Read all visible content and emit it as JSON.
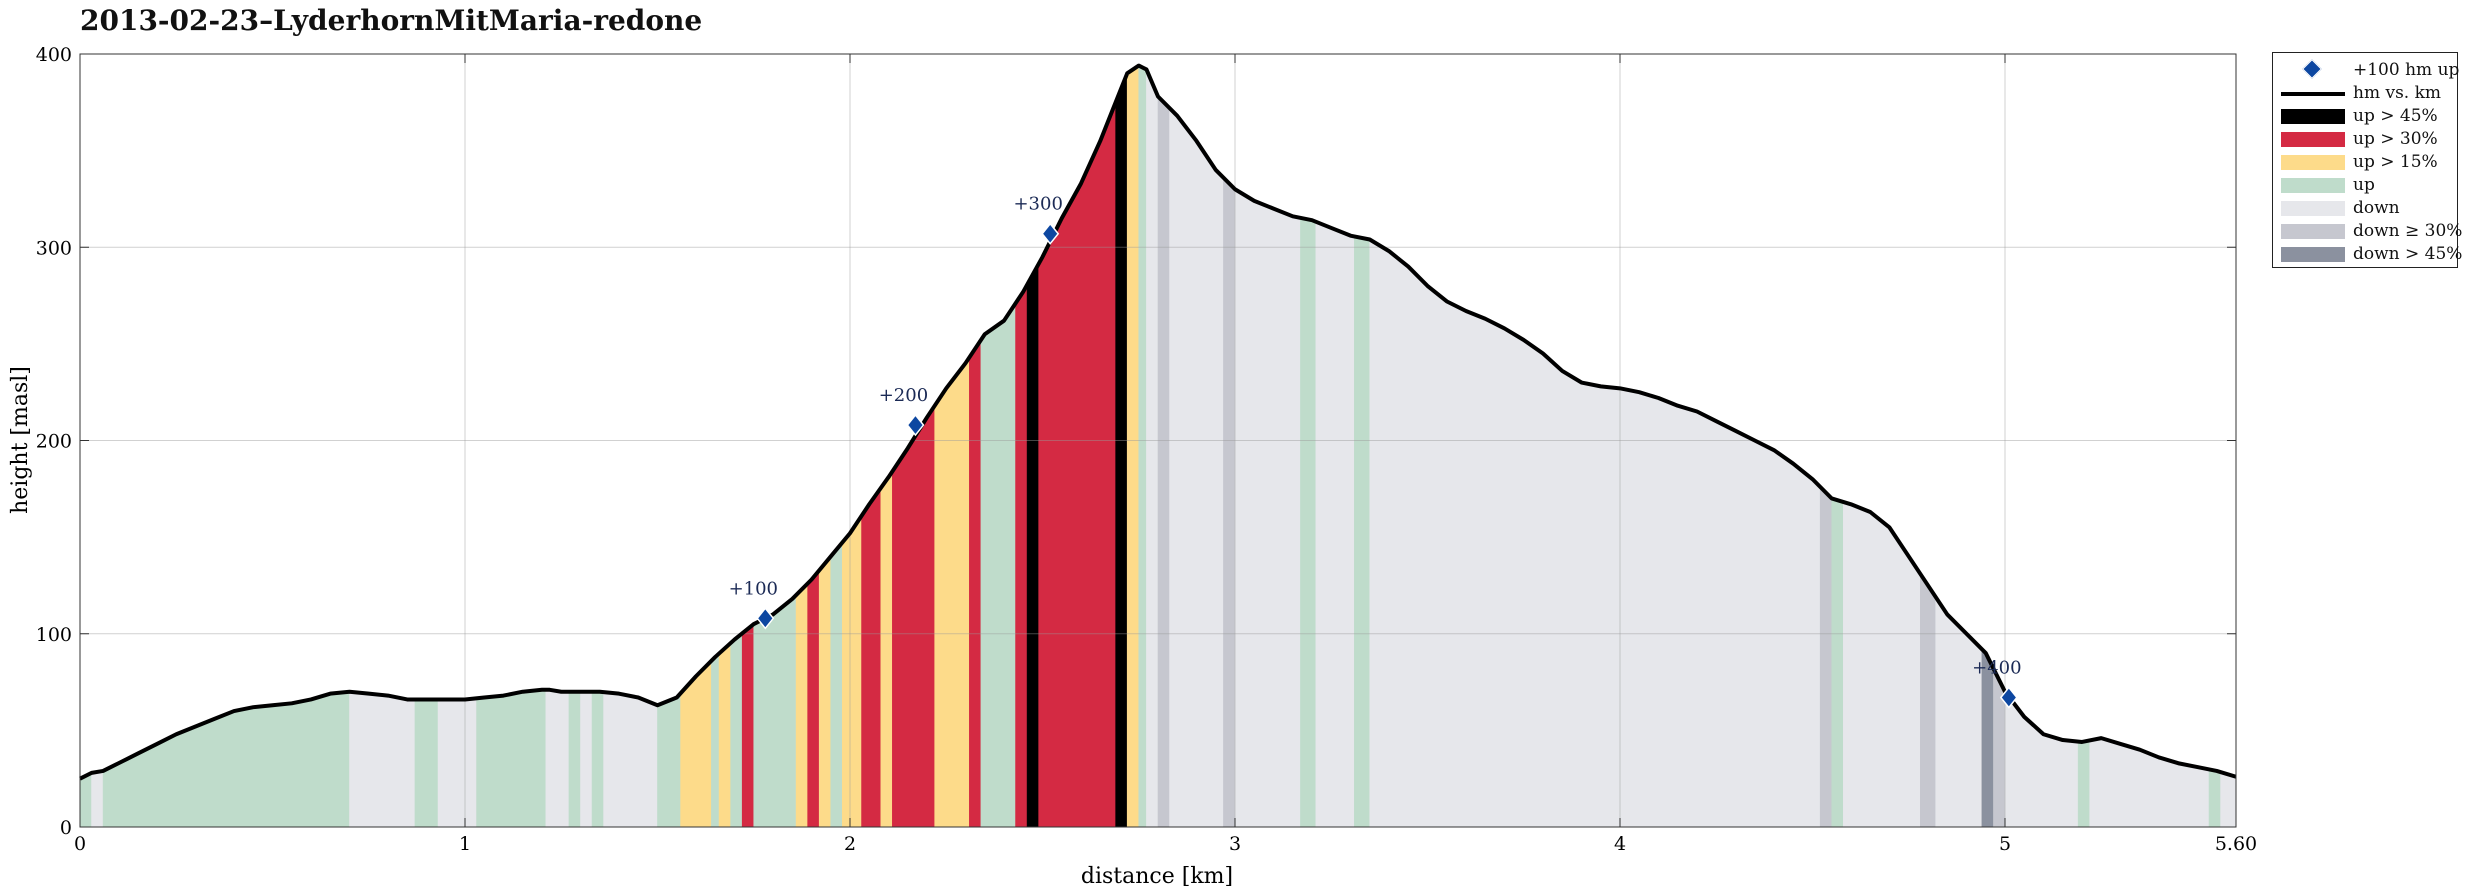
{
  "chart_data": {
    "type": "area",
    "title": "2013-02-23–LyderhornMitMaria-redone",
    "xlabel": "distance [km]",
    "ylabel": "height [masl]",
    "xlim": [
      0,
      5.6
    ],
    "ylim": [
      0,
      400
    ],
    "xticks": [
      0,
      1,
      2,
      3,
      4,
      5,
      5.6
    ],
    "xtick_labels": [
      "0",
      "1",
      "2",
      "3",
      "4",
      "5",
      "5.60"
    ],
    "yticks": [
      0,
      100,
      200,
      300,
      400
    ],
    "ytick_labels": [
      "0",
      "100",
      "200",
      "300",
      "400"
    ],
    "grid": true,
    "legend_position": "outside-top-right",
    "colors": {
      "steep_up": "#000000",
      "very_up": "#d42a43",
      "mid_up": "#fddb8a",
      "up": "#bfdccb",
      "down": "#e6e7eb",
      "steep_down": "#c6c7cf",
      "very_steep_down": "#8b919f",
      "marker": "#0d47a1",
      "line": "#000000"
    },
    "legend": [
      {
        "label": "+100 hm up",
        "kind": "marker",
        "color_key": "marker"
      },
      {
        "label": "hm vs. km",
        "kind": "line",
        "color_key": "line"
      },
      {
        "label": "up > 45%",
        "kind": "patch",
        "color_key": "steep_up"
      },
      {
        "label": "up > 30%",
        "kind": "patch",
        "color_key": "very_up"
      },
      {
        "label": "up > 15%",
        "kind": "patch",
        "color_key": "mid_up"
      },
      {
        "label": "up",
        "kind": "patch",
        "color_key": "up"
      },
      {
        "label": "down",
        "kind": "patch",
        "color_key": "down"
      },
      {
        "label": "down ≥ 30%",
        "kind": "patch",
        "color_key": "steep_down"
      },
      {
        "label": "down > 45%",
        "kind": "patch",
        "color_key": "very_steep_down"
      }
    ],
    "profile": {
      "x": [
        0,
        0.03,
        0.06,
        0.1,
        0.15,
        0.2,
        0.25,
        0.3,
        0.35,
        0.4,
        0.45,
        0.5,
        0.55,
        0.6,
        0.65,
        0.7,
        0.75,
        0.8,
        0.85,
        0.9,
        0.95,
        1.0,
        1.05,
        1.1,
        1.15,
        1.2,
        1.22,
        1.25,
        1.3,
        1.35,
        1.4,
        1.45,
        1.5,
        1.55,
        1.6,
        1.65,
        1.7,
        1.75,
        1.8,
        1.85,
        1.9,
        1.95,
        2.0,
        2.05,
        2.1,
        2.15,
        2.2,
        2.25,
        2.3,
        2.35,
        2.4,
        2.45,
        2.5,
        2.55,
        2.6,
        2.65,
        2.7,
        2.72,
        2.75,
        2.77,
        2.8,
        2.85,
        2.9,
        2.95,
        3.0,
        3.05,
        3.1,
        3.15,
        3.2,
        3.25,
        3.3,
        3.35,
        3.4,
        3.45,
        3.5,
        3.55,
        3.6,
        3.65,
        3.7,
        3.75,
        3.8,
        3.85,
        3.9,
        3.95,
        4.0,
        4.05,
        4.1,
        4.15,
        4.2,
        4.25,
        4.3,
        4.35,
        4.4,
        4.45,
        4.5,
        4.55,
        4.6,
        4.65,
        4.7,
        4.75,
        4.8,
        4.85,
        4.9,
        4.95,
        5.0,
        5.05,
        5.1,
        5.15,
        5.2,
        5.25,
        5.3,
        5.35,
        5.4,
        5.45,
        5.5,
        5.55,
        5.6
      ],
      "y": [
        25,
        28,
        29,
        33,
        38,
        43,
        48,
        52,
        56,
        60,
        62,
        63,
        64,
        66,
        69,
        70,
        69,
        68,
        66,
        66,
        66,
        66,
        67,
        68,
        70,
        71,
        71,
        70,
        70,
        70,
        69,
        67,
        63,
        67,
        78,
        88,
        97,
        105,
        110,
        118,
        128,
        140,
        152,
        167,
        181,
        196,
        212,
        227,
        240,
        255,
        262,
        277,
        295,
        315,
        333,
        355,
        380,
        390,
        394,
        392,
        378,
        368,
        355,
        340,
        330,
        324,
        320,
        316,
        314,
        310,
        306,
        304,
        298,
        290,
        280,
        272,
        267,
        263,
        258,
        252,
        245,
        236,
        230,
        228,
        227,
        225,
        222,
        218,
        215,
        210,
        205,
        200,
        195,
        188,
        180,
        170,
        167,
        163,
        155,
        140,
        125,
        110,
        100,
        90,
        70,
        57,
        48,
        45,
        44,
        46,
        43,
        40,
        36,
        33,
        31,
        29,
        26
      ]
    },
    "segments": [
      {
        "from": 0,
        "to": 0.03,
        "type": "up"
      },
      {
        "from": 0.03,
        "to": 0.06,
        "type": "down"
      },
      {
        "from": 0.06,
        "to": 0.7,
        "type": "up"
      },
      {
        "from": 0.7,
        "to": 0.87,
        "type": "down"
      },
      {
        "from": 0.87,
        "to": 0.93,
        "type": "up"
      },
      {
        "from": 0.93,
        "to": 1.03,
        "type": "down"
      },
      {
        "from": 1.03,
        "to": 1.21,
        "type": "up"
      },
      {
        "from": 1.21,
        "to": 1.27,
        "type": "down"
      },
      {
        "from": 1.27,
        "to": 1.3,
        "type": "up"
      },
      {
        "from": 1.3,
        "to": 1.33,
        "type": "down"
      },
      {
        "from": 1.33,
        "to": 1.36,
        "type": "up"
      },
      {
        "from": 1.36,
        "to": 1.5,
        "type": "down"
      },
      {
        "from": 1.5,
        "to": 1.56,
        "type": "up"
      },
      {
        "from": 1.56,
        "to": 1.64,
        "type": "mid_up"
      },
      {
        "from": 1.64,
        "to": 1.66,
        "type": "up"
      },
      {
        "from": 1.66,
        "to": 1.69,
        "type": "mid_up"
      },
      {
        "from": 1.69,
        "to": 1.72,
        "type": "up"
      },
      {
        "from": 1.72,
        "to": 1.75,
        "type": "very_up"
      },
      {
        "from": 1.75,
        "to": 1.86,
        "type": "up"
      },
      {
        "from": 1.86,
        "to": 1.89,
        "type": "mid_up"
      },
      {
        "from": 1.89,
        "to": 1.92,
        "type": "very_up"
      },
      {
        "from": 1.92,
        "to": 1.95,
        "type": "mid_up"
      },
      {
        "from": 1.95,
        "to": 1.98,
        "type": "up"
      },
      {
        "from": 1.98,
        "to": 2.03,
        "type": "mid_up"
      },
      {
        "from": 2.03,
        "to": 2.08,
        "type": "very_up"
      },
      {
        "from": 2.08,
        "to": 2.11,
        "type": "mid_up"
      },
      {
        "from": 2.11,
        "to": 2.22,
        "type": "very_up"
      },
      {
        "from": 2.22,
        "to": 2.31,
        "type": "mid_up"
      },
      {
        "from": 2.31,
        "to": 2.34,
        "type": "very_up"
      },
      {
        "from": 2.34,
        "to": 2.43,
        "type": "up"
      },
      {
        "from": 2.43,
        "to": 2.46,
        "type": "very_up"
      },
      {
        "from": 2.46,
        "to": 2.49,
        "type": "steep_up"
      },
      {
        "from": 2.49,
        "to": 2.69,
        "type": "very_up"
      },
      {
        "from": 2.69,
        "to": 2.72,
        "type": "steep_up"
      },
      {
        "from": 2.72,
        "to": 2.75,
        "type": "mid_up"
      },
      {
        "from": 2.75,
        "to": 2.77,
        "type": "up"
      },
      {
        "from": 2.77,
        "to": 2.8,
        "type": "down"
      },
      {
        "from": 2.8,
        "to": 2.83,
        "type": "steep_down"
      },
      {
        "from": 2.83,
        "to": 2.97,
        "type": "down"
      },
      {
        "from": 2.97,
        "to": 3.0,
        "type": "steep_down"
      },
      {
        "from": 3.0,
        "to": 3.17,
        "type": "down"
      },
      {
        "from": 3.17,
        "to": 3.21,
        "type": "up"
      },
      {
        "from": 3.21,
        "to": 3.31,
        "type": "down"
      },
      {
        "from": 3.31,
        "to": 3.35,
        "type": "up"
      },
      {
        "from": 3.35,
        "to": 4.52,
        "type": "down"
      },
      {
        "from": 4.52,
        "to": 4.55,
        "type": "steep_down"
      },
      {
        "from": 4.55,
        "to": 4.58,
        "type": "up"
      },
      {
        "from": 4.58,
        "to": 4.78,
        "type": "down"
      },
      {
        "from": 4.78,
        "to": 4.82,
        "type": "steep_down"
      },
      {
        "from": 4.82,
        "to": 4.94,
        "type": "down"
      },
      {
        "from": 4.94,
        "to": 4.97,
        "type": "very_steep_down"
      },
      {
        "from": 4.97,
        "to": 5.0,
        "type": "steep_down"
      },
      {
        "from": 5.0,
        "to": 5.19,
        "type": "down"
      },
      {
        "from": 5.19,
        "to": 5.22,
        "type": "up"
      },
      {
        "from": 5.22,
        "to": 5.53,
        "type": "down"
      },
      {
        "from": 5.53,
        "to": 5.56,
        "type": "up"
      },
      {
        "from": 5.56,
        "to": 5.6,
        "type": "down"
      }
    ],
    "markers": [
      {
        "x": 1.78,
        "y": 108,
        "label": "+100"
      },
      {
        "x": 2.17,
        "y": 208,
        "label": "+200"
      },
      {
        "x": 2.52,
        "y": 307,
        "label": "+300"
      },
      {
        "x": 5.01,
        "y": 67,
        "label": "+400"
      }
    ]
  }
}
